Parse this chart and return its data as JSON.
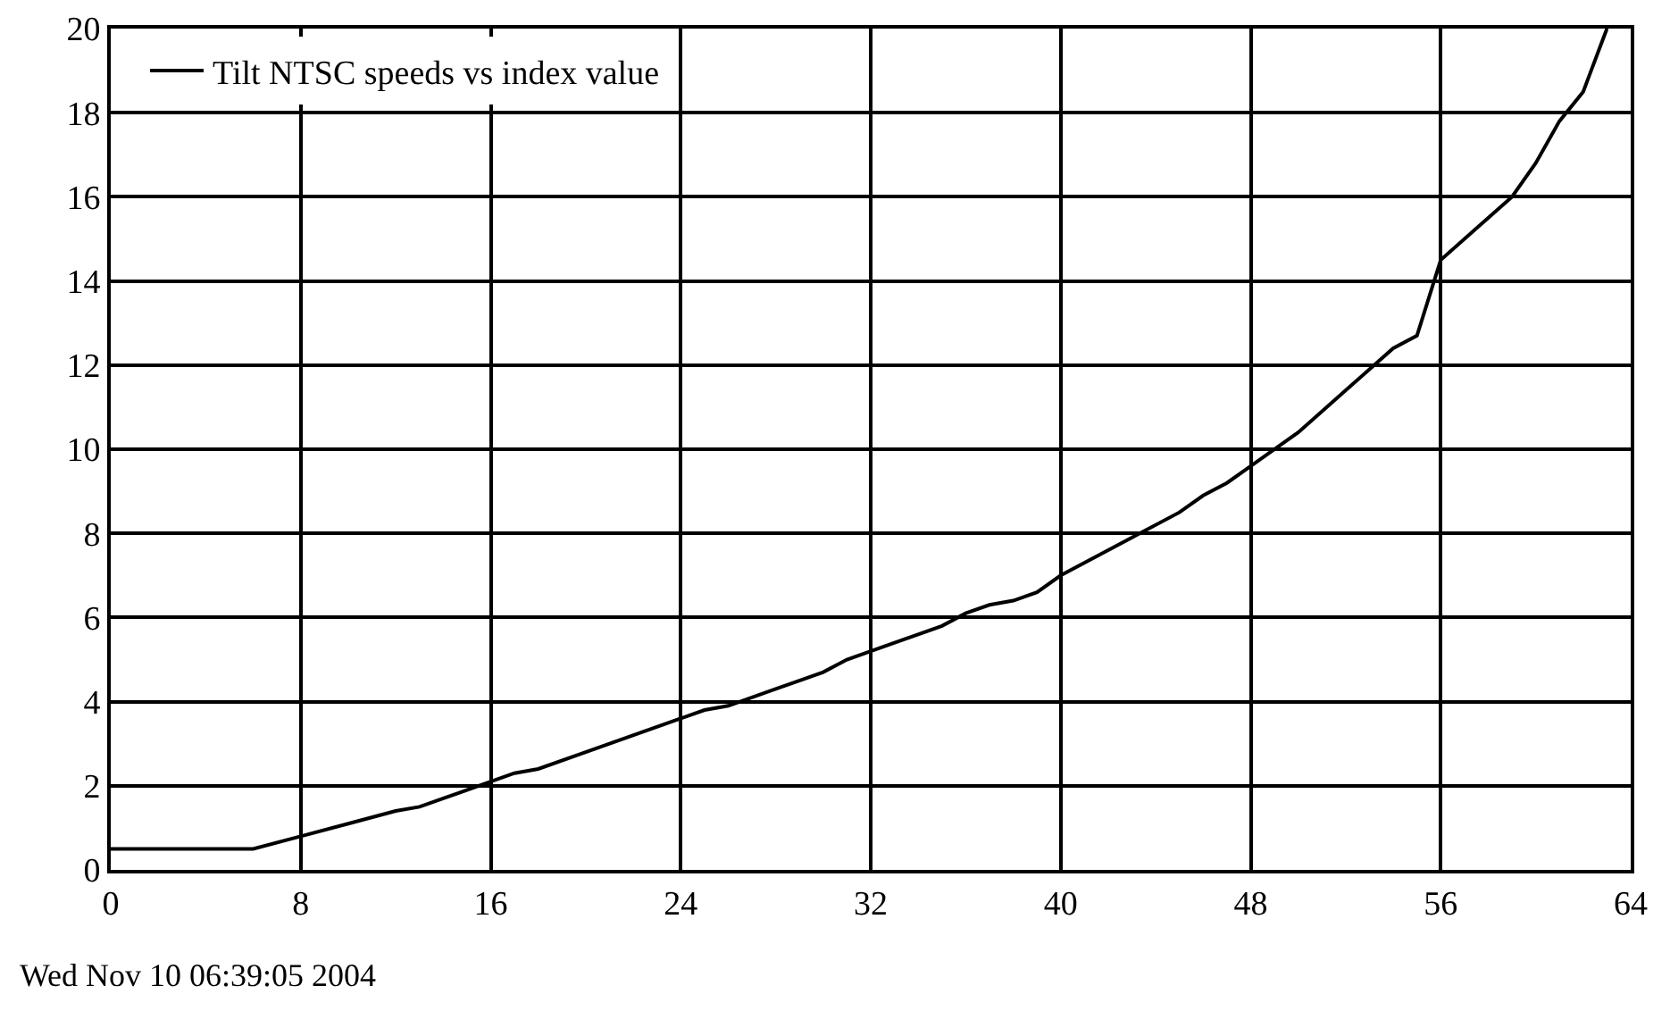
{
  "chart_data": {
    "type": "line",
    "x": [
      0,
      6,
      8,
      10,
      12,
      13,
      16,
      17,
      18,
      20,
      24,
      25,
      26,
      28,
      30,
      31,
      32,
      35,
      36,
      37,
      38,
      39,
      40,
      42,
      45,
      46,
      47,
      48,
      50,
      52,
      54,
      55,
      56,
      58,
      59,
      60,
      61,
      62,
      63
    ],
    "series": [
      {
        "name": "Tilt NTSC speeds vs index value",
        "color": "#000000",
        "values": [
          0.5,
          0.5,
          0.8,
          1.1,
          1.4,
          1.5,
          2.1,
          2.3,
          2.4,
          2.8,
          3.6,
          3.8,
          3.9,
          4.3,
          4.7,
          5.0,
          5.2,
          5.8,
          6.1,
          6.3,
          6.4,
          6.6,
          7.0,
          7.6,
          8.5,
          8.9,
          9.2,
          9.6,
          10.4,
          11.4,
          12.4,
          12.7,
          14.5,
          15.5,
          16.0,
          16.8,
          17.8,
          18.5,
          20
        ]
      }
    ],
    "xlim": [
      0,
      64
    ],
    "xticks": [
      0,
      8,
      16,
      24,
      32,
      40,
      48,
      56,
      64
    ],
    "ylim": [
      0,
      20
    ],
    "yticks": [
      0,
      2,
      4,
      6,
      8,
      10,
      12,
      14,
      16,
      18,
      20
    ],
    "grid": true,
    "legend": "top left",
    "marker": "none",
    "line_style": "solid",
    "annotations": [
      "Wed Nov 10 06:39:05 2004"
    ]
  }
}
